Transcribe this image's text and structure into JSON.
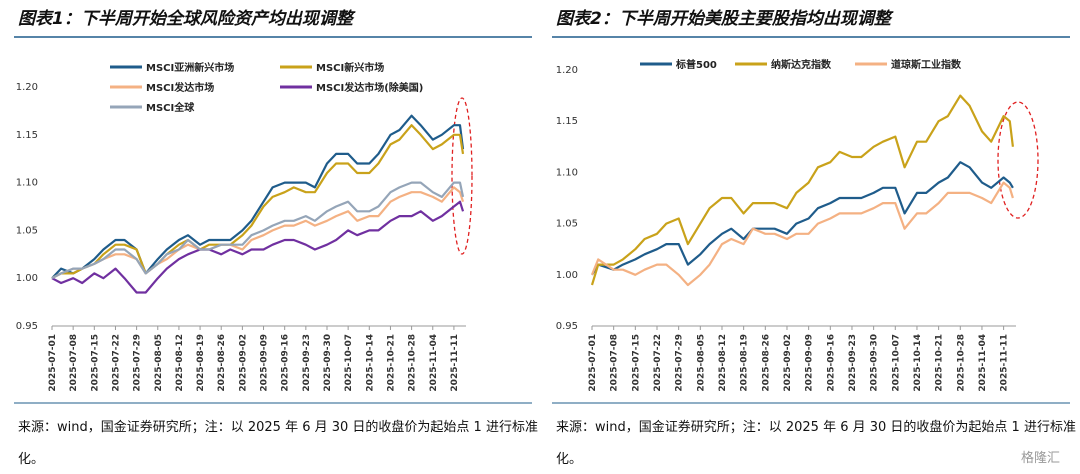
{
  "chart_data": [
    {
      "type": "line",
      "title": "图表1：下半周开始全球风险资产均出现调整",
      "x": [
        "2025-07-01",
        "2025-07-04",
        "2025-07-08",
        "2025-07-11",
        "2025-07-15",
        "2025-07-18",
        "2025-07-22",
        "2025-07-25",
        "2025-07-29",
        "2025-08-01",
        "2025-08-05",
        "2025-08-08",
        "2025-08-12",
        "2025-08-15",
        "2025-08-19",
        "2025-08-22",
        "2025-08-26",
        "2025-08-29",
        "2025-09-02",
        "2025-09-05",
        "2025-09-09",
        "2025-09-12",
        "2025-09-16",
        "2025-09-19",
        "2025-09-23",
        "2025-09-26",
        "2025-09-30",
        "2025-10-03",
        "2025-10-07",
        "2025-10-10",
        "2025-10-14",
        "2025-10-17",
        "2025-10-21",
        "2025-10-24",
        "2025-10-28",
        "2025-10-31",
        "2025-11-04",
        "2025-11-07",
        "2025-11-11",
        "2025-11-13",
        "2025-11-14"
      ],
      "xlim": [
        "2025-07-01",
        "2025-11-15"
      ],
      "xticks": [
        "2025-07-01",
        "2025-07-08",
        "2025-07-15",
        "2025-07-22",
        "2025-07-29",
        "2025-08-05",
        "2025-08-12",
        "2025-08-19",
        "2025-08-26",
        "2025-09-02",
        "2025-09-09",
        "2025-09-16",
        "2025-09-23",
        "2025-09-30",
        "2025-10-07",
        "2025-10-14",
        "2025-10-21",
        "2025-10-28",
        "2025-11-04",
        "2025-11-11"
      ],
      "ylim": [
        0.95,
        1.2
      ],
      "yticks": [
        0.95,
        {
          "value": 1,
          "label": "1.00"
        },
        1.05,
        {
          "value": 1.1,
          "label": "1.10"
        },
        1.15,
        {
          "value": 1.2,
          "label": "1.20"
        }
      ],
      "series": [
        {
          "name": "MSCI亚洲新兴市场",
          "color": "#1f5c8b",
          "values": [
            1.0,
            1.01,
            1.005,
            1.01,
            1.02,
            1.03,
            1.04,
            1.04,
            1.03,
            1.005,
            1.02,
            1.03,
            1.04,
            1.045,
            1.035,
            1.04,
            1.04,
            1.04,
            1.05,
            1.06,
            1.08,
            1.095,
            1.1,
            1.1,
            1.1,
            1.095,
            1.12,
            1.13,
            1.13,
            1.12,
            1.12,
            1.13,
            1.15,
            1.155,
            1.17,
            1.16,
            1.145,
            1.15,
            1.16,
            1.16,
            1.135
          ]
        },
        {
          "name": "MSCI新兴市场",
          "color": "#c9a21a",
          "values": [
            1.0,
            1.005,
            1.005,
            1.01,
            1.015,
            1.025,
            1.035,
            1.035,
            1.03,
            1.005,
            1.015,
            1.025,
            1.035,
            1.04,
            1.03,
            1.035,
            1.035,
            1.035,
            1.045,
            1.055,
            1.075,
            1.085,
            1.09,
            1.095,
            1.09,
            1.09,
            1.11,
            1.12,
            1.12,
            1.11,
            1.11,
            1.12,
            1.14,
            1.145,
            1.16,
            1.15,
            1.135,
            1.14,
            1.15,
            1.15,
            1.13
          ]
        },
        {
          "name": "MSCI发达市场",
          "color": "#f4b183",
          "values": [
            1.0,
            1.005,
            1.01,
            1.01,
            1.015,
            1.02,
            1.025,
            1.025,
            1.02,
            1.005,
            1.015,
            1.02,
            1.03,
            1.035,
            1.03,
            1.03,
            1.035,
            1.035,
            1.03,
            1.04,
            1.045,
            1.05,
            1.055,
            1.055,
            1.06,
            1.055,
            1.06,
            1.065,
            1.07,
            1.06,
            1.065,
            1.065,
            1.08,
            1.085,
            1.09,
            1.09,
            1.085,
            1.08,
            1.095,
            1.09,
            1.08
          ]
        },
        {
          "name": "MSCI发达市场(除美国)",
          "color": "#7030a0",
          "values": [
            1.0,
            0.995,
            1.0,
            0.995,
            1.005,
            1.0,
            1.01,
            1.0,
            0.985,
            0.985,
            1.0,
            1.01,
            1.02,
            1.025,
            1.03,
            1.03,
            1.025,
            1.03,
            1.025,
            1.03,
            1.03,
            1.035,
            1.04,
            1.04,
            1.035,
            1.03,
            1.035,
            1.04,
            1.05,
            1.045,
            1.05,
            1.05,
            1.06,
            1.065,
            1.065,
            1.07,
            1.06,
            1.065,
            1.075,
            1.08,
            1.07
          ]
        },
        {
          "name": "MSCI全球",
          "color": "#95a5b8",
          "values": [
            1.0,
            1.005,
            1.01,
            1.01,
            1.015,
            1.02,
            1.03,
            1.03,
            1.02,
            1.005,
            1.015,
            1.025,
            1.03,
            1.04,
            1.03,
            1.03,
            1.035,
            1.035,
            1.035,
            1.045,
            1.05,
            1.055,
            1.06,
            1.06,
            1.065,
            1.06,
            1.07,
            1.075,
            1.08,
            1.07,
            1.07,
            1.075,
            1.09,
            1.095,
            1.1,
            1.1,
            1.09,
            1.085,
            1.1,
            1.1,
            1.085
          ]
        }
      ],
      "source": "来源：wind，国金证券研究所；注：以 2025 年 6 月 30 日的收盘价为起始点 1 进行标准化。"
    },
    {
      "type": "line",
      "title": "图表2：下半周开始美股主要股指均出现调整",
      "x": [
        "2025-07-01",
        "2025-07-03",
        "2025-07-08",
        "2025-07-11",
        "2025-07-15",
        "2025-07-18",
        "2025-07-22",
        "2025-07-25",
        "2025-07-29",
        "2025-08-01",
        "2025-08-05",
        "2025-08-08",
        "2025-08-12",
        "2025-08-15",
        "2025-08-19",
        "2025-08-22",
        "2025-08-26",
        "2025-08-29",
        "2025-09-02",
        "2025-09-05",
        "2025-09-09",
        "2025-09-12",
        "2025-09-16",
        "2025-09-19",
        "2025-09-23",
        "2025-09-26",
        "2025-09-30",
        "2025-10-03",
        "2025-10-07",
        "2025-10-10",
        "2025-10-14",
        "2025-10-17",
        "2025-10-21",
        "2025-10-24",
        "2025-10-28",
        "2025-10-31",
        "2025-11-04",
        "2025-11-07",
        "2025-11-11",
        "2025-11-13",
        "2025-11-14"
      ],
      "xlim": [
        "2025-07-01",
        "2025-11-15"
      ],
      "xticks": [
        "2025-07-01",
        "2025-07-08",
        "2025-07-15",
        "2025-07-22",
        "2025-07-29",
        "2025-08-05",
        "2025-08-12",
        "2025-08-19",
        "2025-08-26",
        "2025-09-02",
        "2025-09-09",
        "2025-09-16",
        "2025-09-23",
        "2025-09-30",
        "2025-10-07",
        "2025-10-14",
        "2025-10-21",
        "2025-10-28",
        "2025-11-04",
        "2025-11-11"
      ],
      "ylim": [
        0.95,
        1.2
      ],
      "yticks": [
        0.95,
        {
          "value": 1,
          "label": "1.00"
        },
        1.05,
        {
          "value": 1.1,
          "label": "1.10"
        },
        1.15,
        {
          "value": 1.2,
          "label": "1.20"
        }
      ],
      "series": [
        {
          "name": "标普500",
          "color": "#1f5c8b",
          "values": [
            1.0,
            1.01,
            1.005,
            1.01,
            1.015,
            1.02,
            1.025,
            1.03,
            1.03,
            1.01,
            1.02,
            1.03,
            1.04,
            1.045,
            1.035,
            1.045,
            1.045,
            1.045,
            1.04,
            1.05,
            1.055,
            1.065,
            1.07,
            1.075,
            1.075,
            1.075,
            1.08,
            1.085,
            1.085,
            1.06,
            1.08,
            1.08,
            1.09,
            1.095,
            1.11,
            1.105,
            1.09,
            1.085,
            1.095,
            1.09,
            1.085
          ]
        },
        {
          "name": "纳斯达克指数",
          "color": "#c9a21a",
          "values": [
            0.99,
            1.01,
            1.01,
            1.015,
            1.025,
            1.035,
            1.04,
            1.05,
            1.055,
            1.03,
            1.05,
            1.065,
            1.075,
            1.075,
            1.06,
            1.07,
            1.07,
            1.07,
            1.065,
            1.08,
            1.09,
            1.105,
            1.11,
            1.12,
            1.115,
            1.115,
            1.125,
            1.13,
            1.135,
            1.105,
            1.13,
            1.13,
            1.15,
            1.155,
            1.175,
            1.165,
            1.14,
            1.13,
            1.155,
            1.15,
            1.125
          ]
        },
        {
          "name": "道琼斯工业指数",
          "color": "#f4b183",
          "values": [
            1.0,
            1.015,
            1.005,
            1.005,
            1.0,
            1.005,
            1.01,
            1.01,
            1.0,
            0.99,
            1.0,
            1.01,
            1.03,
            1.035,
            1.03,
            1.045,
            1.04,
            1.04,
            1.035,
            1.04,
            1.04,
            1.05,
            1.055,
            1.06,
            1.06,
            1.06,
            1.065,
            1.07,
            1.07,
            1.045,
            1.06,
            1.06,
            1.07,
            1.08,
            1.08,
            1.08,
            1.075,
            1.07,
            1.09,
            1.085,
            1.075
          ]
        }
      ],
      "source": "来源：wind，国金证券研究所；注：以 2025 年 6 月 30 日的收盘价为起始点 1 进行标准化。"
    }
  ],
  "watermark": "格隆汇"
}
